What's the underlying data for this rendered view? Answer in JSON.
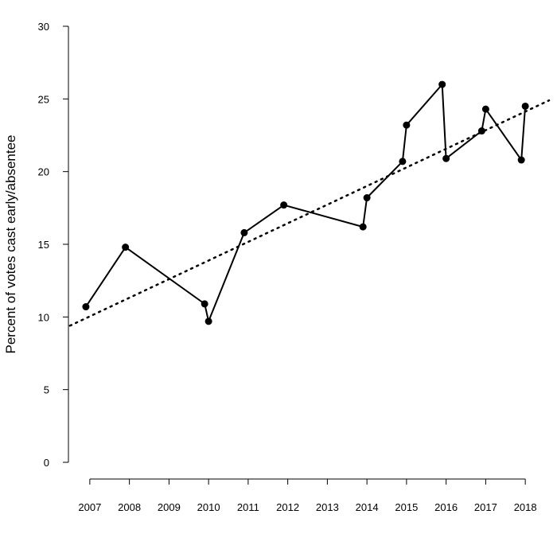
{
  "chart_data": {
    "type": "line",
    "title": "",
    "xlabel": "",
    "ylabel": "Percent of votes cast early/absentee",
    "xlim": [
      2006.5,
      2018.6
    ],
    "ylim": [
      0,
      30
    ],
    "x_ticks": [
      "2007",
      "2008",
      "2009",
      "2010",
      "2011",
      "2012",
      "2013",
      "2014",
      "2015",
      "2016",
      "2017",
      "2018"
    ],
    "y_ticks": [
      "0",
      "5",
      "10",
      "15",
      "20",
      "25",
      "30"
    ],
    "grid": false,
    "legend": "none",
    "series": [
      {
        "style": "solid line with filled circle markers",
        "color": "#000000",
        "points": [
          {
            "x": 2006.9,
            "y": 10.7
          },
          {
            "x": 2007.9,
            "y": 14.8
          },
          {
            "x": 2009.9,
            "y": 10.9
          },
          {
            "x": 2010.0,
            "y": 9.7
          },
          {
            "x": 2010.9,
            "y": 15.8
          },
          {
            "x": 2011.9,
            "y": 17.7
          },
          {
            "x": 2013.9,
            "y": 16.2
          },
          {
            "x": 2014.0,
            "y": 18.2
          },
          {
            "x": 2014.9,
            "y": 20.7
          },
          {
            "x": 2015.0,
            "y": 23.2
          },
          {
            "x": 2015.9,
            "y": 26.0
          },
          {
            "x": 2016.0,
            "y": 20.9
          },
          {
            "x": 2016.9,
            "y": 22.8
          },
          {
            "x": 2017.0,
            "y": 24.3
          },
          {
            "x": 2017.9,
            "y": 20.8
          },
          {
            "x": 2018.0,
            "y": 24.5
          }
        ]
      }
    ],
    "trend_line": {
      "style": "dotted",
      "color": "#000000",
      "start": {
        "x": 2006.5,
        "y": 9.4
      },
      "end": {
        "x": 2018.6,
        "y": 24.9
      }
    }
  }
}
